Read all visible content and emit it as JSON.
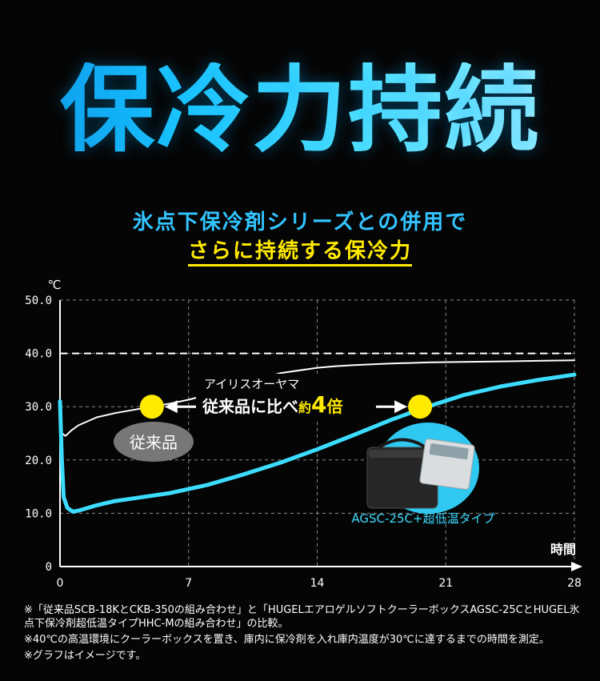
{
  "hero": {
    "title": "保冷力持続"
  },
  "subtitle": {
    "line1": "氷点下保冷剤シリーズとの併用で",
    "line2": "さらに持続する保冷力"
  },
  "chart_data": {
    "type": "line",
    "xlabel": "時間",
    "ylabel": "℃",
    "xlim": [
      0,
      28
    ],
    "ylim": [
      0,
      50
    ],
    "x_ticks": [
      0,
      7,
      14,
      21,
      28
    ],
    "y_ticks": [
      0,
      10.0,
      20.0,
      30.0,
      40.0,
      50.0
    ],
    "x_tick_labels": [
      "0",
      "7",
      "14",
      "21",
      "28"
    ],
    "y_tick_labels": [
      "0",
      "10.0",
      "20.0",
      "30.0",
      "40.0",
      "50.0"
    ],
    "grid": true,
    "reference_line": {
      "y": 40,
      "style": "dashed"
    },
    "series": [
      {
        "name": "従来品",
        "color": "#ffffff",
        "x": [
          0,
          0.1,
          0.3,
          0.6,
          1,
          2,
          3,
          4,
          5,
          6,
          7,
          8,
          10,
          12,
          14,
          15,
          16,
          18,
          20,
          22,
          24,
          26,
          28
        ],
        "y": [
          30.5,
          25,
          24.5,
          25.5,
          26.5,
          28,
          28.8,
          29.4,
          30,
          30.6,
          31.3,
          32.2,
          34.4,
          36.3,
          37.3,
          37.6,
          37.8,
          38.1,
          38.3,
          38.4,
          38.5,
          38.6,
          38.7
        ]
      },
      {
        "name": "AGSC-25C+超低温タイプ",
        "color": "#3cdcff",
        "x": [
          0,
          0.1,
          0.2,
          0.4,
          0.7,
          1,
          2,
          3,
          4,
          6,
          8,
          10,
          12,
          14,
          16,
          18,
          20,
          22,
          24,
          26,
          28
        ],
        "y": [
          31,
          20,
          13,
          11,
          10.3,
          10.5,
          11.5,
          12.3,
          12.8,
          13.8,
          15.3,
          17.3,
          19.5,
          22,
          24.7,
          27.5,
          30,
          32.2,
          33.8,
          35,
          36
        ]
      }
    ],
    "markers": [
      {
        "x": 5,
        "y": 30
      },
      {
        "x": 19.6,
        "y": 30
      }
    ],
    "annotations": {
      "top": "アイリスオーヤマ",
      "compare_prefix": "従来品に比べ",
      "compare_about": "約",
      "compare_value": "4",
      "compare_unit": "倍",
      "conventional_label": "従来品",
      "product_label": "AGSC-25C+超低温タイプ"
    }
  },
  "notes": [
    "※「従来品SCB-18KとCKB-350の組み合わせ」と「HUGELエアロゲルソフトクーラーボックスAGSC-25CとHUGEL氷点下保冷剤超低温タイプHHC-Mの組み合わせ」の比較。",
    "※40℃の高温環境にクーラーボックスを置き、庫内に保冷剤を入れ庫内温度が30℃に達するまでの時間を測定。",
    "※グラフはイメージです。"
  ]
}
